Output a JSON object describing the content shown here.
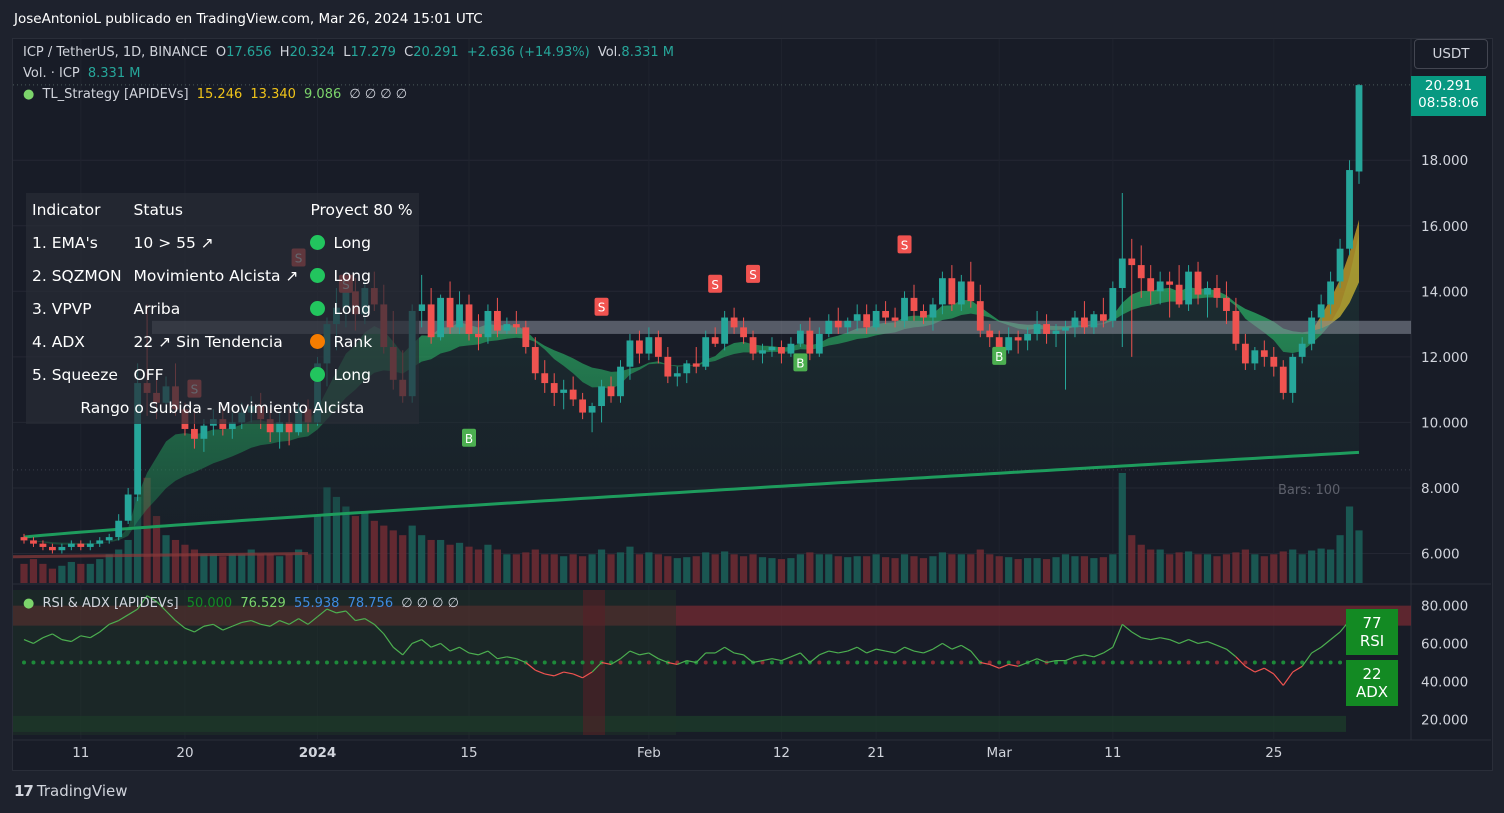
{
  "header": {
    "publisher_line": "JoseAntonioL publicado en TradingView.com, Mar 26, 2024 15:01 UTC"
  },
  "legend": {
    "symbol": "ICP / TetherUS, 1D, BINANCE",
    "o_label": "O",
    "o_value": "17.656",
    "h_label": "H",
    "h_value": "20.324",
    "l_label": "L",
    "l_value": "17.279",
    "c_label": "C",
    "c_value": "20.291",
    "change": "+2.636 (+14.93%)",
    "vol_label": "Vol.",
    "vol_value": "8.331 M",
    "vol_line_label": "Vol. · ICP",
    "vol_line_value": "8.331 M",
    "strategy_name": "TL_Strategy [APIDEVs]",
    "strategy_v1": "15.246",
    "strategy_v2": "13.340",
    "strategy_v3": "9.086",
    "strategy_nulls": "∅ ∅ ∅ ∅",
    "rsi_name": "RSI & ADX [APIDEVs]",
    "rsi_v1": "50.000",
    "rsi_v2": "76.529",
    "rsi_v3": "55.938",
    "rsi_v4": "78.756",
    "rsi_nulls": "∅ ∅ ∅ ∅"
  },
  "currency_button": "USDT",
  "last_price": {
    "price": "20.291",
    "countdown": "08:58:06"
  },
  "indicator_table": {
    "header_indicator": "Indicator",
    "header_status": "Status",
    "header_proyect": "Proyect 80 %",
    "rows": [
      {
        "indicator": "1. EMA's",
        "status": "10 > 55 ↗",
        "signal": "Long",
        "signal_color": "#22c55e"
      },
      {
        "indicator": "2. SQZMON",
        "status": "Movimiento Alcista ↗",
        "signal": "Long",
        "signal_color": "#22c55e"
      },
      {
        "indicator": "3. VPVP",
        "status": "Arriba",
        "signal": "Long",
        "signal_color": "#22c55e"
      },
      {
        "indicator": "4. ADX",
        "status": "22 ↗ Sin Tendencia",
        "signal": "Rank",
        "signal_color": "#f57c00"
      },
      {
        "indicator": "5. Squeeze",
        "status": "OFF",
        "signal": "Long",
        "signal_color": "#22c55e"
      }
    ],
    "footer": "Rango o Subida - Movimiento Alcista"
  },
  "oscillator_badges": {
    "rsi_value": "77",
    "rsi_label": "RSI",
    "adx_value": "22",
    "adx_label": "ADX"
  },
  "bars_label": "Bars: 100",
  "footer": {
    "brand": "TradingView",
    "brand_mark": "17"
  },
  "colors": {
    "up": "#26a69a",
    "down": "#ef5350",
    "accent_green": "#089981",
    "ema_fast_fill": "#2ebd6b",
    "ema_slow": "#1f9d5c",
    "buy_tag": "#4caf50",
    "sell_tag": "#f05350"
  },
  "chart_data": [
    {
      "type": "candlestick",
      "title": "ICP / TetherUS, 1D, BINANCE",
      "x_tick_labels": [
        "11",
        "20",
        "2024",
        "15",
        "Feb",
        "12",
        "21",
        "Mar",
        "11",
        "25"
      ],
      "y_tick_labels": [
        "6.000",
        "8.000",
        "10.000",
        "12.000",
        "14.000",
        "16.000",
        "18.000"
      ],
      "ylim": [
        5.1,
        20.6
      ],
      "candles": [
        [
          6.5,
          6.6,
          6.3,
          6.4
        ],
        [
          6.4,
          6.5,
          6.2,
          6.3
        ],
        [
          6.3,
          6.4,
          6.1,
          6.2
        ],
        [
          6.2,
          6.3,
          6.0,
          6.1
        ],
        [
          6.1,
          6.3,
          6.0,
          6.2
        ],
        [
          6.2,
          6.4,
          6.1,
          6.3
        ],
        [
          6.3,
          6.4,
          6.1,
          6.2
        ],
        [
          6.2,
          6.4,
          6.1,
          6.3
        ],
        [
          6.3,
          6.5,
          6.2,
          6.4
        ],
        [
          6.4,
          6.6,
          6.3,
          6.5
        ],
        [
          6.5,
          7.2,
          6.4,
          7.0
        ],
        [
          7.0,
          8.0,
          6.9,
          7.8
        ],
        [
          7.8,
          11.8,
          7.6,
          11.2
        ],
        [
          11.2,
          13.6,
          10.2,
          10.9
        ],
        [
          10.9,
          11.6,
          10.1,
          10.6
        ],
        [
          10.6,
          11.4,
          10.3,
          11.1
        ],
        [
          11.1,
          11.8,
          10.2,
          10.4
        ],
        [
          10.4,
          10.6,
          9.6,
          9.8
        ],
        [
          9.8,
          10.3,
          9.2,
          9.5
        ],
        [
          9.5,
          10.1,
          9.1,
          9.9
        ],
        [
          9.9,
          10.4,
          9.6,
          10.1
        ],
        [
          10.1,
          10.5,
          9.6,
          9.8
        ],
        [
          9.8,
          10.3,
          9.5,
          10.0
        ],
        [
          10.0,
          10.6,
          9.8,
          10.3
        ],
        [
          10.3,
          10.8,
          10.0,
          10.5
        ],
        [
          10.5,
          10.9,
          9.8,
          10.1
        ],
        [
          10.1,
          10.4,
          9.4,
          9.7
        ],
        [
          9.7,
          10.3,
          9.2,
          10.0
        ],
        [
          10.0,
          10.4,
          9.3,
          9.7
        ],
        [
          9.7,
          10.6,
          9.6,
          10.4
        ],
        [
          10.4,
          10.7,
          9.7,
          10.0
        ],
        [
          10.0,
          12.0,
          9.9,
          11.8
        ],
        [
          11.8,
          13.2,
          11.1,
          13.0
        ],
        [
          13.0,
          14.1,
          12.2,
          13.5
        ],
        [
          13.5,
          14.6,
          12.9,
          14.0
        ],
        [
          14.0,
          14.4,
          12.8,
          13.3
        ],
        [
          13.3,
          14.3,
          13.0,
          14.1
        ],
        [
          14.1,
          14.6,
          13.4,
          13.6
        ],
        [
          13.6,
          14.2,
          12.1,
          12.3
        ],
        [
          12.3,
          13.4,
          11.0,
          11.3
        ],
        [
          11.3,
          12.2,
          10.6,
          10.8
        ],
        [
          10.8,
          13.6,
          10.6,
          13.4
        ],
        [
          13.4,
          14.5,
          12.9,
          13.6
        ],
        [
          13.6,
          14.1,
          12.4,
          12.6
        ],
        [
          12.6,
          13.9,
          12.5,
          13.8
        ],
        [
          13.8,
          14.3,
          12.7,
          12.9
        ],
        [
          12.9,
          14.0,
          12.7,
          13.6
        ],
        [
          13.6,
          13.9,
          12.5,
          12.7
        ],
        [
          12.7,
          13.3,
          12.2,
          12.6
        ],
        [
          12.6,
          13.6,
          12.4,
          13.4
        ],
        [
          13.4,
          13.8,
          12.6,
          12.8
        ],
        [
          12.8,
          13.2,
          12.7,
          13.0
        ],
        [
          13.0,
          13.4,
          12.7,
          12.9
        ],
        [
          12.9,
          13.1,
          12.1,
          12.3
        ],
        [
          12.3,
          12.6,
          11.3,
          11.5
        ],
        [
          11.5,
          11.9,
          10.9,
          11.2
        ],
        [
          11.2,
          11.5,
          10.5,
          10.9
        ],
        [
          10.9,
          11.3,
          10.4,
          11.0
        ],
        [
          11.0,
          11.4,
          10.5,
          10.7
        ],
        [
          10.7,
          10.9,
          10.1,
          10.3
        ],
        [
          10.3,
          10.6,
          9.7,
          10.5
        ],
        [
          10.5,
          11.3,
          10.0,
          11.1
        ],
        [
          11.1,
          11.4,
          10.6,
          10.8
        ],
        [
          10.8,
          11.9,
          10.6,
          11.7
        ],
        [
          11.7,
          12.7,
          11.3,
          12.5
        ],
        [
          12.5,
          12.8,
          11.8,
          12.1
        ],
        [
          12.1,
          12.9,
          11.9,
          12.6
        ],
        [
          12.6,
          12.8,
          11.8,
          12.0
        ],
        [
          12.0,
          12.3,
          11.2,
          11.4
        ],
        [
          11.4,
          11.7,
          11.1,
          11.5
        ],
        [
          11.5,
          11.9,
          11.2,
          11.8
        ],
        [
          11.8,
          12.3,
          11.5,
          11.7
        ],
        [
          11.7,
          12.8,
          11.6,
          12.6
        ],
        [
          12.6,
          12.9,
          12.3,
          12.4
        ],
        [
          12.4,
          13.4,
          12.2,
          13.2
        ],
        [
          13.2,
          13.5,
          12.7,
          12.9
        ],
        [
          12.9,
          13.2,
          12.4,
          12.6
        ],
        [
          12.6,
          12.8,
          11.9,
          12.1
        ],
        [
          12.1,
          12.4,
          11.8,
          12.2
        ],
        [
          12.2,
          12.6,
          12.0,
          12.3
        ],
        [
          12.3,
          12.5,
          11.8,
          12.1
        ],
        [
          12.1,
          12.6,
          12.0,
          12.4
        ],
        [
          12.4,
          13.0,
          12.3,
          12.8
        ],
        [
          12.8,
          13.2,
          11.9,
          12.1
        ],
        [
          12.1,
          12.9,
          12.0,
          12.7
        ],
        [
          12.7,
          13.3,
          12.6,
          13.1
        ],
        [
          13.1,
          13.5,
          12.7,
          12.9
        ],
        [
          12.9,
          13.2,
          12.7,
          13.1
        ],
        [
          13.1,
          13.6,
          12.8,
          13.3
        ],
        [
          13.3,
          13.6,
          12.7,
          12.9
        ],
        [
          12.9,
          13.6,
          12.8,
          13.4
        ],
        [
          13.4,
          13.7,
          13.0,
          13.2
        ],
        [
          13.2,
          13.5,
          12.9,
          13.1
        ],
        [
          13.1,
          14.0,
          12.9,
          13.8
        ],
        [
          13.8,
          14.2,
          13.1,
          13.4
        ],
        [
          13.4,
          13.6,
          13.0,
          13.2
        ],
        [
          13.2,
          13.8,
          12.8,
          13.6
        ],
        [
          13.6,
          14.6,
          13.3,
          14.4
        ],
        [
          14.4,
          14.8,
          13.4,
          13.6
        ],
        [
          13.6,
          14.5,
          13.4,
          14.3
        ],
        [
          14.3,
          14.9,
          13.5,
          13.7
        ],
        [
          13.7,
          14.2,
          12.6,
          12.8
        ],
        [
          12.8,
          13.0,
          12.3,
          12.6
        ],
        [
          12.6,
          12.8,
          11.9,
          12.2
        ],
        [
          12.2,
          12.9,
          12.1,
          12.6
        ],
        [
          12.6,
          12.8,
          12.1,
          12.5
        ],
        [
          12.5,
          12.9,
          12.2,
          12.7
        ],
        [
          12.7,
          13.4,
          12.5,
          13.0
        ],
        [
          13.0,
          13.3,
          12.4,
          12.7
        ],
        [
          12.7,
          13.0,
          12.3,
          12.8
        ],
        [
          12.8,
          13.1,
          11.0,
          12.9
        ],
        [
          12.9,
          13.4,
          12.6,
          13.2
        ],
        [
          13.2,
          13.7,
          12.7,
          12.9
        ],
        [
          12.9,
          13.4,
          12.7,
          13.3
        ],
        [
          13.3,
          13.8,
          12.9,
          13.1
        ],
        [
          13.1,
          14.3,
          12.9,
          14.1
        ],
        [
          14.1,
          17.0,
          12.3,
          15.0
        ],
        [
          15.0,
          15.6,
          12.0,
          14.8
        ],
        [
          14.8,
          15.4,
          13.8,
          14.4
        ],
        [
          14.4,
          14.8,
          13.6,
          14.0
        ],
        [
          14.0,
          14.6,
          13.6,
          14.3
        ],
        [
          14.3,
          14.6,
          13.2,
          14.2
        ],
        [
          14.2,
          14.8,
          13.5,
          13.6
        ],
        [
          13.6,
          14.8,
          13.4,
          14.6
        ],
        [
          14.6,
          14.9,
          13.6,
          13.9
        ],
        [
          13.9,
          14.3,
          13.2,
          14.1
        ],
        [
          14.1,
          14.5,
          13.5,
          13.8
        ],
        [
          13.8,
          14.3,
          13.0,
          13.4
        ],
        [
          13.4,
          13.8,
          12.2,
          12.4
        ],
        [
          12.4,
          12.7,
          11.6,
          11.8
        ],
        [
          11.8,
          12.3,
          11.6,
          12.2
        ],
        [
          12.2,
          12.5,
          11.7,
          12.0
        ],
        [
          12.0,
          12.3,
          11.4,
          11.7
        ],
        [
          11.7,
          11.9,
          10.7,
          10.9
        ],
        [
          10.9,
          12.1,
          10.6,
          12.0
        ],
        [
          12.0,
          12.6,
          11.8,
          12.4
        ],
        [
          12.4,
          13.4,
          12.2,
          13.2
        ],
        [
          13.2,
          13.9,
          12.8,
          13.6
        ],
        [
          13.6,
          14.6,
          13.3,
          14.3
        ],
        [
          14.3,
          15.6,
          14.1,
          15.3
        ],
        [
          15.3,
          18.0,
          15.1,
          17.7
        ],
        [
          17.656,
          20.324,
          17.279,
          20.291
        ]
      ],
      "volume": [
        0.2,
        0.25,
        0.2,
        0.15,
        0.18,
        0.22,
        0.2,
        0.2,
        0.25,
        0.3,
        0.35,
        0.45,
        0.9,
        1.1,
        0.7,
        0.5,
        0.45,
        0.4,
        0.35,
        0.3,
        0.3,
        0.28,
        0.3,
        0.3,
        0.35,
        0.3,
        0.3,
        0.28,
        0.3,
        0.35,
        0.3,
        0.7,
        1.0,
        0.9,
        0.8,
        0.7,
        0.75,
        0.65,
        0.6,
        0.55,
        0.5,
        0.6,
        0.5,
        0.45,
        0.45,
        0.4,
        0.42,
        0.38,
        0.35,
        0.4,
        0.35,
        0.3,
        0.3,
        0.32,
        0.35,
        0.3,
        0.3,
        0.28,
        0.3,
        0.28,
        0.3,
        0.35,
        0.3,
        0.32,
        0.38,
        0.3,
        0.32,
        0.3,
        0.28,
        0.26,
        0.27,
        0.28,
        0.32,
        0.3,
        0.33,
        0.3,
        0.28,
        0.3,
        0.27,
        0.26,
        0.25,
        0.26,
        0.3,
        0.32,
        0.3,
        0.3,
        0.28,
        0.27,
        0.28,
        0.28,
        0.3,
        0.27,
        0.26,
        0.3,
        0.28,
        0.26,
        0.28,
        0.32,
        0.3,
        0.3,
        0.3,
        0.35,
        0.3,
        0.28,
        0.27,
        0.25,
        0.26,
        0.26,
        0.25,
        0.27,
        0.3,
        0.28,
        0.28,
        0.26,
        0.27,
        0.3,
        1.15,
        0.5,
        0.4,
        0.35,
        0.35,
        0.3,
        0.32,
        0.33,
        0.3,
        0.3,
        0.28,
        0.3,
        0.32,
        0.35,
        0.3,
        0.28,
        0.3,
        0.33,
        0.35,
        0.3,
        0.34,
        0.36,
        0.35,
        0.5,
        0.8,
        0.55
      ],
      "volume_unit": "M",
      "ema_fast_end": 15.246,
      "ema_mid_end": 13.34,
      "ema_slow_end": 9.086,
      "sell_signals": [
        {
          "bar": 18,
          "price": 11.0
        },
        {
          "bar": 29,
          "price": 15.0
        },
        {
          "bar": 34,
          "price": 14.2
        },
        {
          "bar": 61,
          "price": 13.5
        },
        {
          "bar": 73,
          "price": 14.2
        },
        {
          "bar": 77,
          "price": 14.5
        },
        {
          "bar": 93,
          "price": 15.4
        }
      ],
      "buy_signals": [
        {
          "bar": 47,
          "price": 9.5
        },
        {
          "bar": 82,
          "price": 11.8
        },
        {
          "bar": 103,
          "price": 12.0
        }
      ],
      "signal_labels": {
        "buy": "B",
        "sell": "S"
      },
      "volume_profile_band": [
        12.7,
        13.1
      ]
    },
    {
      "type": "line",
      "title": "RSI & ADX [APIDEVs]",
      "y_tick_labels": [
        "20.000",
        "40.000",
        "60.000",
        "80.000"
      ],
      "ylim": [
        12,
        88
      ],
      "rsi_last": 76.529,
      "adx_last": 22,
      "midline": 50,
      "upper_band": 78.756,
      "rsi": [
        62,
        60,
        63,
        65,
        62,
        61,
        64,
        63,
        66,
        70,
        72,
        75,
        78,
        85,
        82,
        77,
        72,
        68,
        66,
        69,
        70,
        67,
        69,
        71,
        72,
        70,
        69,
        72,
        70,
        73,
        70,
        74,
        78,
        76,
        77,
        72,
        73,
        70,
        65,
        58,
        54,
        60,
        62,
        58,
        60,
        56,
        58,
        55,
        54,
        56,
        52,
        53,
        52,
        50,
        46,
        44,
        43,
        45,
        44,
        42,
        45,
        50,
        49,
        52,
        56,
        54,
        55,
        52,
        50,
        49,
        51,
        50,
        55,
        55,
        58,
        55,
        54,
        50,
        51,
        52,
        51,
        53,
        55,
        50,
        54,
        56,
        55,
        56,
        58,
        55,
        57,
        56,
        55,
        58,
        56,
        55,
        57,
        60,
        57,
        59,
        56,
        50,
        49,
        47,
        49,
        48,
        50,
        52,
        50,
        51,
        51,
        53,
        54,
        53,
        55,
        58,
        70,
        66,
        63,
        62,
        63,
        62,
        60,
        62,
        60,
        61,
        59,
        57,
        53,
        48,
        45,
        47,
        44,
        38,
        45,
        48,
        55,
        58,
        62,
        66,
        72,
        76.529
      ]
    }
  ]
}
